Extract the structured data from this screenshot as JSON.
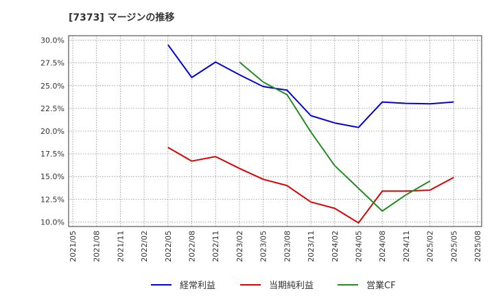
{
  "chart_data": {
    "type": "line",
    "title": "[7373]  マージンの推移",
    "xlabel": "",
    "ylabel": "",
    "ylim": [
      9.5,
      30.5
    ],
    "yticks": [
      10.0,
      12.5,
      15.0,
      17.5,
      20.0,
      22.5,
      25.0,
      27.5,
      30.0
    ],
    "ytick_labels": [
      "10.0%",
      "12.5%",
      "15.0%",
      "17.5%",
      "20.0%",
      "22.5%",
      "25.0%",
      "27.5%",
      "30.0%"
    ],
    "x_ticks": [
      "2021/05",
      "2021/08",
      "2021/11",
      "2022/02",
      "2022/05",
      "2022/08",
      "2022/11",
      "2023/02",
      "2023/05",
      "2023/08",
      "2023/11",
      "2024/02",
      "2024/05",
      "2024/08",
      "2024/11",
      "2025/02",
      "2025/05",
      "2025/08"
    ],
    "grid": true,
    "legend_position": "bottom",
    "series": [
      {
        "name": "経常利益",
        "color": "#0000dd",
        "points": [
          {
            "x": "2022/05",
            "y": 29.5
          },
          {
            "x": "2022/08",
            "y": 25.9
          },
          {
            "x": "2022/11",
            "y": 27.6
          },
          {
            "x": "2023/02",
            "y": 26.2
          },
          {
            "x": "2023/05",
            "y": 24.9
          },
          {
            "x": "2023/08",
            "y": 24.5
          },
          {
            "x": "2023/11",
            "y": 21.7
          },
          {
            "x": "2024/02",
            "y": 20.9
          },
          {
            "x": "2024/05",
            "y": 20.4
          },
          {
            "x": "2024/08",
            "y": 23.2
          },
          {
            "x": "2024/11",
            "y": 23.05
          },
          {
            "x": "2025/02",
            "y": 23.0
          },
          {
            "x": "2025/05",
            "y": 23.2
          }
        ]
      },
      {
        "name": "当期純利益",
        "color": "#dd0000",
        "points": [
          {
            "x": "2022/05",
            "y": 18.2
          },
          {
            "x": "2022/08",
            "y": 16.7
          },
          {
            "x": "2022/11",
            "y": 17.2
          },
          {
            "x": "2023/02",
            "y": 15.9
          },
          {
            "x": "2023/05",
            "y": 14.7
          },
          {
            "x": "2023/08",
            "y": 14.0
          },
          {
            "x": "2023/11",
            "y": 12.2
          },
          {
            "x": "2024/02",
            "y": 11.5
          },
          {
            "x": "2024/05",
            "y": 9.9
          },
          {
            "x": "2024/08",
            "y": 13.4
          },
          {
            "x": "2024/11",
            "y": 13.4
          },
          {
            "x": "2025/02",
            "y": 13.5
          },
          {
            "x": "2025/05",
            "y": 14.9
          }
        ]
      },
      {
        "name": "営業CF",
        "color": "#228b22",
        "points": [
          {
            "x": "2023/02",
            "y": 27.6
          },
          {
            "x": "2023/05",
            "y": 25.4
          },
          {
            "x": "2023/08",
            "y": 24.0
          },
          {
            "x": "2023/11",
            "y": 19.9
          },
          {
            "x": "2024/02",
            "y": 16.2
          },
          {
            "x": "2024/05",
            "y": 13.7
          },
          {
            "x": "2024/08",
            "y": 11.2
          },
          {
            "x": "2024/11",
            "y": 13.0
          },
          {
            "x": "2025/02",
            "y": 14.5
          }
        ]
      }
    ]
  }
}
